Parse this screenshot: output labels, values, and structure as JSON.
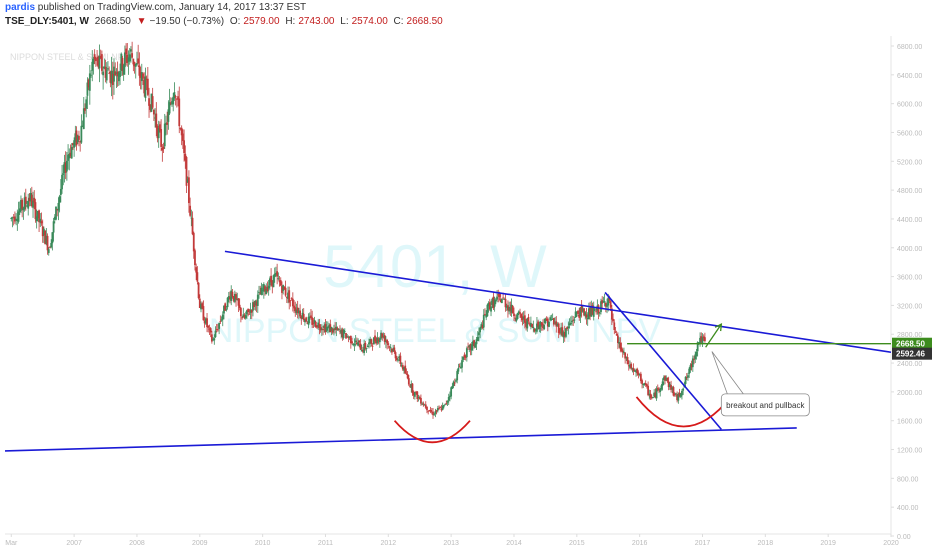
{
  "header": {
    "user": "pardis",
    "published_text": "published on TradingView.com, January 14, 2017 13:37 EST",
    "symbol": "TSE_DLY:5401, W",
    "last": "2668.50",
    "change_arrow": "▼",
    "change": "−19.50 (−0.73%)",
    "open_label": "O:",
    "open": "2579.00",
    "high_label": "H:",
    "high": "2743.00",
    "low_label": "L:",
    "low": "2574.00",
    "close_label": "C:",
    "close": "2668.50"
  },
  "chart_data": {
    "type": "candlestick",
    "watermark_symbol": "5401, W",
    "watermark_name": "NIPPON STEEL & SUMI NPV",
    "ylim": [
      0,
      6800
    ],
    "xlim": [
      2005.9,
      2020.0
    ],
    "y_ticks": [
      "0.00",
      "400.00",
      "800.00",
      "1200.00",
      "1600.00",
      "2000.00",
      "2400.00",
      "2800.00",
      "3200.00",
      "3600.00",
      "4000.00",
      "4400.00",
      "4800.00",
      "5200.00",
      "5600.00",
      "6000.00",
      "6400.00",
      "6800.00"
    ],
    "x_ticks": [
      {
        "year": 2006,
        "label": "Mar"
      },
      {
        "year": 2007,
        "label": "2007"
      },
      {
        "year": 2008,
        "label": "2008"
      },
      {
        "year": 2009,
        "label": "2009"
      },
      {
        "year": 2010,
        "label": "2010"
      },
      {
        "year": 2011,
        "label": "2011"
      },
      {
        "year": 2012,
        "label": "2012"
      },
      {
        "year": 2013,
        "label": "2013"
      },
      {
        "year": 2014,
        "label": "2014"
      },
      {
        "year": 2015,
        "label": "2015"
      },
      {
        "year": 2016,
        "label": "2016"
      },
      {
        "year": 2017,
        "label": "2017"
      },
      {
        "year": 2018,
        "label": "2018"
      },
      {
        "year": 2019,
        "label": "2019"
      },
      {
        "year": 2020,
        "label": "2020"
      }
    ],
    "price_path": [
      [
        2006.0,
        4400
      ],
      [
        2006.3,
        4700
      ],
      [
        2006.6,
        4000
      ],
      [
        2006.9,
        5300
      ],
      [
        2007.1,
        5600
      ],
      [
        2007.3,
        6600
      ],
      [
        2007.6,
        6400
      ],
      [
        2007.9,
        6700
      ],
      [
        2008.2,
        6100
      ],
      [
        2008.4,
        5400
      ],
      [
        2008.6,
        6300
      ],
      [
        2008.8,
        4900
      ],
      [
        2009.0,
        3200
      ],
      [
        2009.2,
        2700
      ],
      [
        2009.5,
        3400
      ],
      [
        2009.7,
        3000
      ],
      [
        2010.0,
        3400
      ],
      [
        2010.2,
        3600
      ],
      [
        2010.5,
        3200
      ],
      [
        2010.7,
        3000
      ],
      [
        2011.0,
        2900
      ],
      [
        2011.3,
        2800
      ],
      [
        2011.6,
        2600
      ],
      [
        2011.9,
        2800
      ],
      [
        2012.2,
        2400
      ],
      [
        2012.4,
        2000
      ],
      [
        2012.7,
        1700
      ],
      [
        2012.9,
        1800
      ],
      [
        2013.2,
        2500
      ],
      [
        2013.4,
        2700
      ],
      [
        2013.6,
        3200
      ],
      [
        2013.8,
        3300
      ],
      [
        2014.0,
        3100
      ],
      [
        2014.3,
        2900
      ],
      [
        2014.6,
        3000
      ],
      [
        2014.8,
        2800
      ],
      [
        2015.0,
        3100
      ],
      [
        2015.3,
        3100
      ],
      [
        2015.5,
        3300
      ],
      [
        2015.6,
        2800
      ],
      [
        2015.8,
        2400
      ],
      [
        2016.0,
        2200
      ],
      [
        2016.2,
        1900
      ],
      [
        2016.4,
        2200
      ],
      [
        2016.6,
        1900
      ],
      [
        2016.8,
        2300
      ],
      [
        2016.95,
        2750
      ],
      [
        2017.05,
        2668
      ]
    ],
    "trendlines": [
      {
        "name": "upper resistance",
        "from": [
          2009.4,
          3950
        ],
        "to": [
          2020.0,
          2550
        ],
        "color": "#1a1ad6"
      },
      {
        "name": "lower support",
        "from": [
          2005.9,
          1180
        ],
        "to": [
          2018.5,
          1500
        ],
        "color": "#1a1ad6"
      },
      {
        "name": "falling trendline",
        "from": [
          2015.45,
          3380
        ],
        "to": [
          2017.3,
          1480
        ],
        "color": "#1a1ad6"
      }
    ],
    "horizontal_levels": [
      {
        "from_x": 2015.8,
        "y": 2668.5,
        "color": "#3d8c1e"
      }
    ],
    "arcs": [
      {
        "center_x": 2012.7,
        "top_y": 1600,
        "bottom_y": 1300,
        "half_width_years": 0.6,
        "color": "#d61a1a"
      },
      {
        "center_x": 2016.7,
        "top_y": 1930,
        "bottom_y": 1520,
        "half_width_years": 0.75,
        "color": "#d61a1a"
      }
    ],
    "arrow": {
      "from": [
        2017.05,
        2620
      ],
      "to": [
        2017.3,
        2940
      ],
      "color": "#3d8c1e"
    },
    "annotation": {
      "text": "breakout and pullback",
      "anchor": [
        2017.15,
        2560
      ],
      "box_center": [
        2018.0,
        1820
      ]
    },
    "price_labels": [
      {
        "value": "2668.50",
        "y": 2668.5,
        "color": "#3d8c1e"
      },
      {
        "value": "2592.46",
        "y": 2530,
        "color": "#333333"
      }
    ],
    "colors": {
      "up": "#3a8a5a",
      "down": "#c23a3a",
      "axis_text": "#999999",
      "watermark": "#dff7fa"
    }
  }
}
